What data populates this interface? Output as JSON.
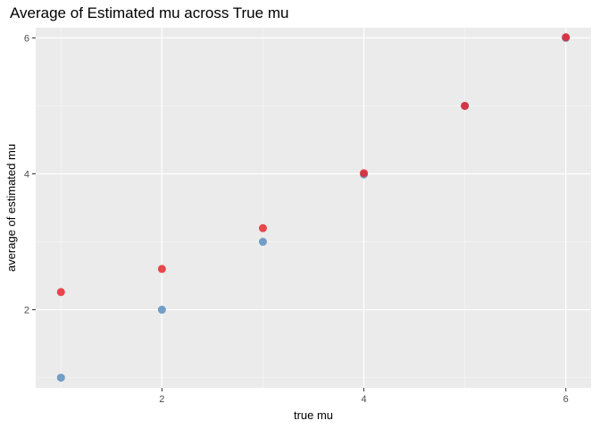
{
  "chart_data": {
    "type": "scatter",
    "title": "Average of Estimated mu across True mu",
    "xlabel": "true mu",
    "ylabel": "average of estimated mu",
    "xlim": [
      0.75,
      6.25
    ],
    "ylim": [
      0.85,
      6.15
    ],
    "x_ticks": [
      2,
      4,
      6
    ],
    "y_ticks": [
      2,
      4,
      6
    ],
    "grid": true,
    "legend": "none",
    "colors": {
      "panel_background": "#ebebeb",
      "major_grid": "#ffffff",
      "minor_grid": "#f5f5f5",
      "blue_point": "#5b8fbf",
      "red_point": "#e8202a"
    },
    "series": [
      {
        "color": "#5b8fbf",
        "points": [
          {
            "x": 1,
            "y": 1.0
          },
          {
            "x": 2,
            "y": 2.0
          },
          {
            "x": 3,
            "y": 3.0
          },
          {
            "x": 4,
            "y": 3.99
          },
          {
            "x": 5,
            "y": 5.0
          },
          {
            "x": 6,
            "y": 6.0
          }
        ]
      },
      {
        "color": "#e8202a",
        "points": [
          {
            "x": 1,
            "y": 2.26
          },
          {
            "x": 2,
            "y": 2.6
          },
          {
            "x": 3,
            "y": 3.2
          },
          {
            "x": 4,
            "y": 4.01
          },
          {
            "x": 5,
            "y": 5.0
          },
          {
            "x": 6,
            "y": 6.01
          }
        ]
      }
    ]
  }
}
